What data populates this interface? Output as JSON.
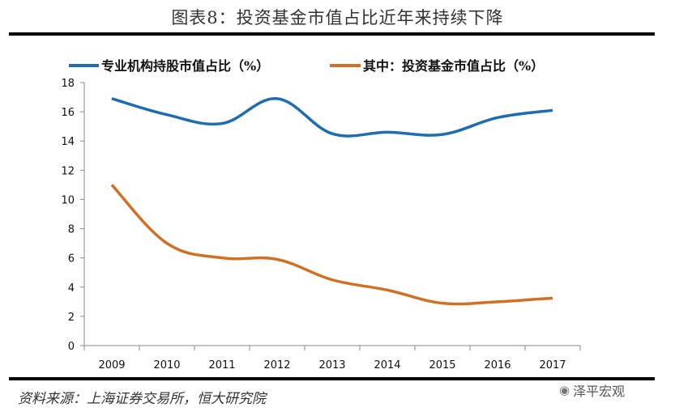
{
  "title": "图表8：投资基金市值占比近年来持续下降",
  "source": "资料来源：上海证券交易所，恒大研究院",
  "watermark": {
    "icon": "wechat-icon",
    "text": "泽平宏观"
  },
  "colors": {
    "series1": "#1F6CAE",
    "series2": "#D07025",
    "axis": "#888888",
    "rule": "#000000"
  },
  "chart_data": {
    "type": "line",
    "title": "图表8：投资基金市值占比近年来持续下降",
    "xlabel": "",
    "ylabel": "",
    "categories": [
      "2009",
      "2010",
      "2011",
      "2012",
      "2013",
      "2014",
      "2015",
      "2016",
      "2017"
    ],
    "ylim": [
      0,
      18
    ],
    "yticks": [
      0,
      2,
      4,
      6,
      8,
      10,
      12,
      14,
      16,
      18
    ],
    "grid": false,
    "smooth": true,
    "legend_position": "top",
    "series": [
      {
        "name": "专业机构持股市值占比（%）",
        "color": "#1F6CAE",
        "values": [
          16.9,
          15.8,
          15.2,
          16.9,
          14.5,
          14.6,
          14.45,
          15.6,
          16.1
        ]
      },
      {
        "name": "其中：投资基金市值占比（%）",
        "color": "#D07025",
        "values": [
          11.0,
          7.0,
          6.0,
          5.9,
          4.5,
          3.8,
          2.9,
          3.0,
          3.25
        ]
      }
    ]
  }
}
